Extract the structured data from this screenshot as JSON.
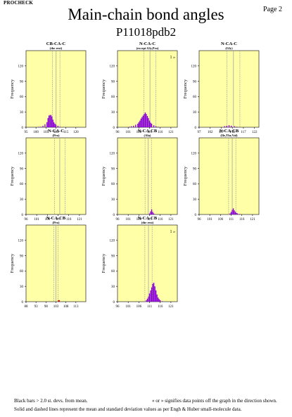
{
  "header": {
    "app_name": "PROCHECK",
    "page_label": "Page 2",
    "title": "Main-chain bond angles",
    "subtitle": "P11018pdb2"
  },
  "footer": {
    "line1_left": "Black bars > 2.0 st. devs. from mean.",
    "line1_right": "« or » signifies data points off the graph in the direction shown.",
    "line2": "Solid and dashed lines represent the mean and standard deviation values as per Engh & Huber small-molecule data."
  },
  "colors": {
    "panel_bg": "#ffffa8",
    "bar": "#8800d8",
    "bar_outlier": "#d00000",
    "mean_line": "#999999",
    "sd_line": "#999999"
  },
  "chart_data": [
    {
      "type": "bar",
      "title": "CB-CA-C",
      "subtitle": "(the rest)",
      "ylabel": "Frequency",
      "ylim": [
        0,
        150
      ],
      "yticks": [
        0,
        30,
        60,
        90,
        120
      ],
      "xlim": [
        95,
        125
      ],
      "xticks": [
        95,
        100,
        105,
        110,
        115,
        120
      ],
      "mean": 110.1,
      "sd": 1.9,
      "offscale": "",
      "bars": [
        [
          101.5,
          1
        ],
        [
          102.5,
          1
        ],
        [
          103.5,
          3
        ],
        [
          104.5,
          6
        ],
        [
          105.5,
          10
        ],
        [
          106.0,
          18
        ],
        [
          106.5,
          23
        ],
        [
          107.0,
          24
        ],
        [
          107.5,
          24
        ],
        [
          108.0,
          21
        ],
        [
          108.5,
          15
        ],
        [
          109.0,
          10
        ],
        [
          109.5,
          7
        ],
        [
          110.0,
          5
        ],
        [
          111.0,
          3
        ],
        [
          112.0,
          1
        ]
      ]
    },
    {
      "type": "bar",
      "title": "N-CA-C",
      "subtitle": "(except Gly,Pro)",
      "ylabel": "Frequency",
      "ylim": [
        0,
        150
      ],
      "yticks": [
        0,
        30,
        60,
        90,
        120
      ],
      "xlim": [
        96,
        124
      ],
      "xticks": [
        96,
        101,
        106,
        111,
        116,
        121
      ],
      "mean": 111.2,
      "sd": 2.8,
      "offscale": "1 »",
      "bars": [
        [
          101.5,
          1
        ],
        [
          102.5,
          2
        ],
        [
          103.5,
          3
        ],
        [
          104.5,
          5
        ],
        [
          105.5,
          7
        ],
        [
          106.0,
          10
        ],
        [
          106.5,
          13
        ],
        [
          107.0,
          17
        ],
        [
          107.5,
          20
        ],
        [
          108.0,
          23
        ],
        [
          108.5,
          26
        ],
        [
          109.0,
          29
        ],
        [
          109.5,
          26
        ],
        [
          110.0,
          22
        ],
        [
          110.5,
          18
        ],
        [
          111.0,
          13
        ],
        [
          111.5,
          9
        ],
        [
          112.0,
          7
        ],
        [
          113.0,
          4
        ],
        [
          114.0,
          2
        ],
        [
          115.0,
          1
        ]
      ]
    },
    {
      "type": "bar",
      "title": "N-CA-C",
      "subtitle": "(Gly)",
      "ylabel": "Frequency",
      "ylim": [
        0,
        150
      ],
      "yticks": [
        0,
        30,
        60,
        90,
        120
      ],
      "xlim": [
        97,
        124
      ],
      "xticks": [
        97,
        102,
        107,
        112,
        117,
        122
      ],
      "mean": 112.5,
      "sd": 2.9,
      "offscale": "",
      "bars": [
        [
          108.5,
          2
        ],
        [
          109.5,
          3
        ],
        [
          110.5,
          4
        ],
        [
          111.5,
          3
        ],
        [
          113.0,
          2
        ],
        [
          114.0,
          1
        ]
      ]
    },
    {
      "type": "bar",
      "title": "N-CA-C",
      "subtitle": "(Pro)",
      "ylabel": "Frequency",
      "ylim": [
        0,
        150
      ],
      "yticks": [
        0,
        30,
        60,
        90,
        120
      ],
      "xlim": [
        96,
        124
      ],
      "xticks": [
        96,
        101,
        106,
        111,
        116,
        121
      ],
      "mean": 111.8,
      "sd": 2.5,
      "offscale": "",
      "bars": []
    },
    {
      "type": "bar",
      "title": "N-CA-CB",
      "subtitle": "(Ala)",
      "ylabel": "Frequency",
      "ylim": [
        0,
        150
      ],
      "yticks": [
        0,
        30,
        60,
        90,
        120
      ],
      "xlim": [
        96,
        124
      ],
      "xticks": [
        96,
        101,
        106,
        111,
        116,
        121
      ],
      "mean": 110.4,
      "sd": 1.5,
      "offscale": "",
      "bars": [
        [
          111.0,
          2
        ],
        [
          111.5,
          6
        ],
        [
          112.0,
          10
        ],
        [
          112.5,
          5
        ],
        [
          113.0,
          2
        ]
      ]
    },
    {
      "type": "bar",
      "title": "N-CA-CB",
      "subtitle": "(Ile,Thr,Val)",
      "ylabel": "Frequency",
      "ylim": [
        0,
        150
      ],
      "yticks": [
        0,
        30,
        60,
        90,
        120
      ],
      "xlim": [
        96,
        124
      ],
      "xticks": [
        96,
        101,
        106,
        111,
        116,
        121
      ],
      "mean": 111.5,
      "sd": 1.7,
      "offscale": "",
      "bars": [
        [
          110.5,
          2
        ],
        [
          111.0,
          5
        ],
        [
          111.5,
          9
        ],
        [
          112.0,
          12
        ],
        [
          112.5,
          8
        ],
        [
          113.0,
          5
        ],
        [
          113.5,
          3
        ],
        [
          114.0,
          2
        ],
        [
          115.0,
          1
        ]
      ]
    },
    {
      "type": "bar",
      "title": "N-CA-CB",
      "subtitle": "(Pro)",
      "ylabel": "Frequency",
      "ylim": [
        0,
        150
      ],
      "yticks": [
        0,
        30,
        60,
        90,
        120
      ],
      "xlim": [
        88,
        118
      ],
      "xticks": [
        88,
        93,
        98,
        103,
        108,
        113
      ],
      "mean": 103.0,
      "sd": 1.1,
      "offscale": "",
      "bars": [
        [
          104.2,
          3,
          "outlier"
        ],
        [
          104.7,
          3,
          "outlier"
        ]
      ]
    },
    {
      "type": "bar",
      "title": "N-CA-CB",
      "subtitle": "(the rest)",
      "ylabel": "Frequency",
      "ylim": [
        0,
        150
      ],
      "yticks": [
        0,
        30,
        60,
        90,
        120
      ],
      "xlim": [
        96,
        124
      ],
      "xticks": [
        96,
        101,
        106,
        111,
        116,
        121
      ],
      "mean": 110.5,
      "sd": 1.7,
      "offscale": "1 »",
      "bars": [
        [
          109.5,
          3
        ],
        [
          110.0,
          6
        ],
        [
          110.5,
          10
        ],
        [
          111.0,
          16
        ],
        [
          111.5,
          22
        ],
        [
          112.0,
          28
        ],
        [
          112.5,
          35
        ],
        [
          113.0,
          37
        ],
        [
          113.5,
          30
        ],
        [
          114.0,
          22
        ],
        [
          114.5,
          14
        ],
        [
          115.0,
          8
        ],
        [
          115.5,
          5
        ],
        [
          116.0,
          3
        ],
        [
          117.0,
          1
        ]
      ]
    }
  ]
}
